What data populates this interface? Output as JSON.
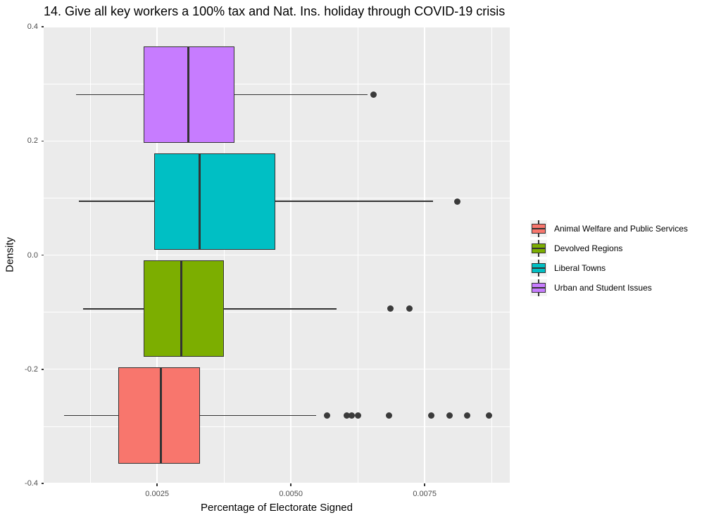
{
  "title": "14. Give all key workers a 100% tax and Nat. Ins. holiday through COVID-19 crisis",
  "colors": {
    "background": "#FFFFFF",
    "panel_bg": "#EBEBEB",
    "grid": "#FFFFFF",
    "box_border": "#333333",
    "outlier_dot": "#3A3A3A",
    "tick_label": "#4D4D4D",
    "legend_key_bg": "#F2F2F2"
  },
  "chart_data": {
    "type": "boxplot",
    "orientation": "horizontal",
    "title": "14. Give all key workers a 100% tax and Nat. Ins. holiday through COVID-19 crisis",
    "xlabel": "Percentage of Electorate Signed",
    "ylabel": "Density",
    "x_range": [
      0.00038,
      0.00909
    ],
    "y_range": [
      -0.4,
      0.4
    ],
    "x_ticks": [
      {
        "value": 0.0025,
        "label": "0.0025"
      },
      {
        "value": 0.005,
        "label": "0.0050"
      },
      {
        "value": 0.0075,
        "label": "0.0075"
      }
    ],
    "x_minor": [
      0.00125,
      0.00375,
      0.00625,
      0.00875
    ],
    "y_ticks": [
      {
        "value": 0.4,
        "label": "0.4"
      },
      {
        "value": 0.2,
        "label": "0.2"
      },
      {
        "value": 0.0,
        "label": "0.0"
      },
      {
        "value": -0.2,
        "label": "-0.2"
      },
      {
        "value": -0.4,
        "label": "-0.4"
      }
    ],
    "y_minor": [
      0.3,
      0.1,
      -0.1,
      -0.3
    ],
    "grid": true,
    "legend_position": "right",
    "box_height": 0.169,
    "series": [
      {
        "name": "Animal Welfare and Public Services",
        "color": "#F8766D",
        "center": -0.281,
        "whisker_low": 0.00076,
        "q1": 0.00178,
        "median": 0.00257,
        "q3": 0.0033,
        "whisker_high": 0.00547,
        "outliers": [
          0.00568,
          0.00604,
          0.00613,
          0.00625,
          0.00683,
          0.00762,
          0.00797,
          0.0083,
          0.0087
        ]
      },
      {
        "name": "Devolved Regions",
        "color": "#7CAE00",
        "center": -0.094,
        "whisker_low": 0.00112,
        "q1": 0.00225,
        "median": 0.00295,
        "q3": 0.00375,
        "whisker_high": 0.00586,
        "outliers": [
          0.00686,
          0.00722
        ]
      },
      {
        "name": "Liberal Towns",
        "color": "#00BFC4",
        "center": 0.094,
        "whisker_low": 0.00104,
        "q1": 0.00245,
        "median": 0.0033,
        "q3": 0.00471,
        "whisker_high": 0.00766,
        "outliers": [
          0.00811
        ]
      },
      {
        "name": "Urban and Student Issues",
        "color": "#C77CFF",
        "center": 0.281,
        "whisker_low": 0.00099,
        "q1": 0.00225,
        "median": 0.00309,
        "q3": 0.00395,
        "whisker_high": 0.00643,
        "outliers": [
          0.00654
        ]
      }
    ]
  }
}
